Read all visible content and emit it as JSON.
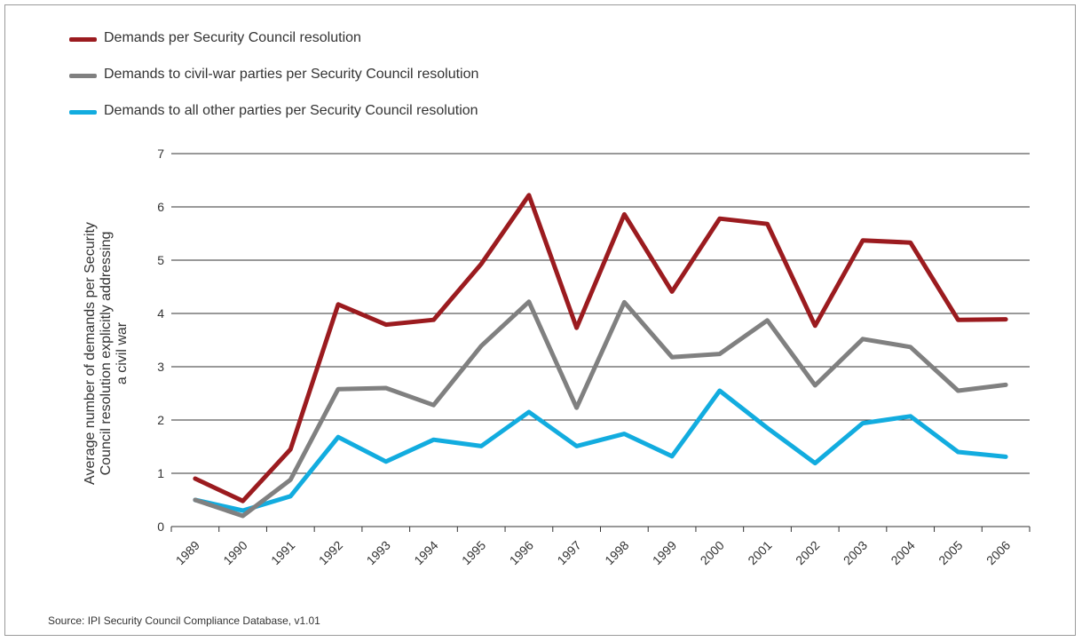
{
  "chart_data": {
    "type": "line",
    "title": "",
    "xlabel": "",
    "ylabel": "Average number of demands per Security Council resolution explicitly addressing a civil war",
    "ylabel_lines": [
      "Average number of demands per Security",
      "Council resolution explicitly addressing",
      "a civil war"
    ],
    "ylim": [
      0,
      7
    ],
    "yticks": [
      0,
      1,
      2,
      3,
      4,
      5,
      6,
      7
    ],
    "categories": [
      "1989",
      "1990",
      "1991",
      "1992",
      "1993",
      "1994",
      "1995",
      "1996",
      "1997",
      "1998",
      "1999",
      "2000",
      "2001",
      "2002",
      "2003",
      "2004",
      "2005",
      "2006"
    ],
    "grid": true,
    "legend_position": "top-left",
    "series": [
      {
        "name": "Demands per Security Council resolution",
        "color": "#9b1b1f",
        "values": [
          0.9,
          0.48,
          1.45,
          4.17,
          3.79,
          3.88,
          4.93,
          6.22,
          3.73,
          5.86,
          4.41,
          5.78,
          5.68,
          3.77,
          5.37,
          5.33,
          3.88,
          3.89
        ]
      },
      {
        "name": "Demands to civil-war parties per Security Council resolution",
        "color": "#808080",
        "values": [
          0.5,
          0.2,
          0.88,
          2.58,
          2.6,
          2.28,
          3.39,
          4.22,
          2.23,
          4.21,
          3.18,
          3.24,
          3.87,
          2.65,
          3.52,
          3.37,
          2.55,
          2.66
        ]
      },
      {
        "name": "Demands to all other parties per Security Council resolution",
        "color": "#12acdf",
        "values": [
          0.5,
          0.3,
          0.57,
          1.68,
          1.22,
          1.63,
          1.51,
          2.15,
          1.51,
          1.74,
          1.32,
          2.55,
          1.85,
          1.19,
          1.94,
          2.07,
          1.4,
          1.31
        ]
      }
    ]
  },
  "source": "Source: IPI Security Council Compliance Database, v1.01"
}
